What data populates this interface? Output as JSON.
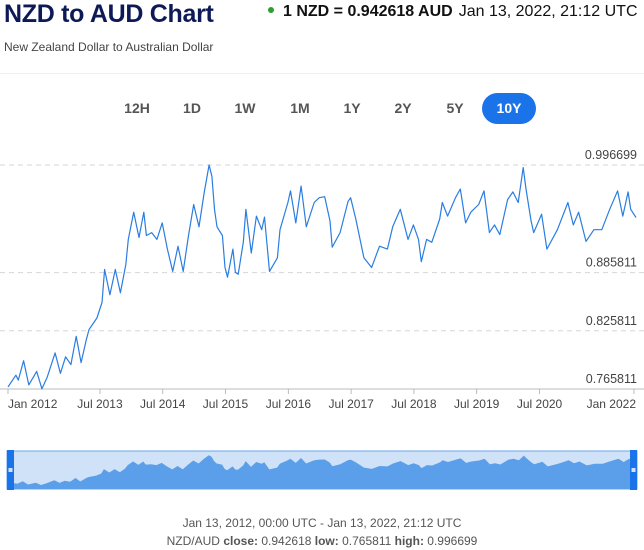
{
  "header": {
    "title": "NZD to AUD Chart",
    "subtitle": "New Zealand Dollar to Australian Dollar",
    "rate_text": "1 NZD = 0.942618 AUD",
    "timestamp": "Jan 13, 2022, 21:12 UTC",
    "status_color": "#2ca02c"
  },
  "ranges": [
    {
      "label": "12H",
      "active": false
    },
    {
      "label": "1D",
      "active": false
    },
    {
      "label": "1W",
      "active": false
    },
    {
      "label": "1M",
      "active": false
    },
    {
      "label": "1Y",
      "active": false
    },
    {
      "label": "2Y",
      "active": false
    },
    {
      "label": "5Y",
      "active": false
    },
    {
      "label": "10Y",
      "active": true
    }
  ],
  "footer": {
    "range_text": "Jan 13, 2012, 00:00 UTC - Jan 13, 2022, 21:12 UTC",
    "pair": "NZD/AUD",
    "close_label": "close:",
    "close_value": "0.942618",
    "low_label": "low:",
    "low_value": "0.765811",
    "high_label": "high:",
    "high_value": "0.996699"
  },
  "colors": {
    "line": "#2a7de1",
    "accent": "#1a73e8",
    "navigator_fill": "#5b9ee9",
    "navigator_bg": "#cfe2f8"
  },
  "chart_data": {
    "type": "line",
    "x_range": [
      "2012-01-13",
      "2022-01-13"
    ],
    "ylim": [
      0.765811,
      0.996699
    ],
    "grid": true,
    "y_ticks": [
      "0.996699",
      "0.885811",
      "0.825811",
      "0.765811"
    ],
    "x_ticks": [
      {
        "label": "Jan 2012",
        "date": "2012-01-13"
      },
      {
        "label": "Jul 2013",
        "date": "2013-07-01"
      },
      {
        "label": "Jul 2014",
        "date": "2014-07-01"
      },
      {
        "label": "Jul 2015",
        "date": "2015-07-01"
      },
      {
        "label": "Jul 2016",
        "date": "2016-07-01"
      },
      {
        "label": "Jul 2017",
        "date": "2017-07-01"
      },
      {
        "label": "Jul 2018",
        "date": "2018-07-01"
      },
      {
        "label": "Jul 2019",
        "date": "2019-07-01"
      },
      {
        "label": "Jul 2020",
        "date": "2020-07-01"
      },
      {
        "label": "Jan 2022",
        "date": "2022-01-01"
      }
    ],
    "series": [
      {
        "points": [
          [
            "2012-01-13",
            0.768
          ],
          [
            "2012-02-28",
            0.78
          ],
          [
            "2012-03-13",
            0.775
          ],
          [
            "2012-04-13",
            0.795
          ],
          [
            "2012-05-13",
            0.77
          ],
          [
            "2012-06-28",
            0.784
          ],
          [
            "2012-07-28",
            0.766
          ],
          [
            "2012-08-28",
            0.778
          ],
          [
            "2012-10-13",
            0.803
          ],
          [
            "2012-11-13",
            0.782
          ],
          [
            "2012-12-13",
            0.799
          ],
          [
            "2013-01-13",
            0.791
          ],
          [
            "2013-02-13",
            0.82
          ],
          [
            "2013-03-13",
            0.793
          ],
          [
            "2013-04-13",
            0.817
          ],
          [
            "2013-04-28",
            0.827
          ],
          [
            "2013-06-13",
            0.839
          ],
          [
            "2013-07-13",
            0.855
          ],
          [
            "2013-07-28",
            0.889
          ],
          [
            "2013-08-28",
            0.863
          ],
          [
            "2013-09-28",
            0.889
          ],
          [
            "2013-10-28",
            0.865
          ],
          [
            "2013-11-28",
            0.894
          ],
          [
            "2013-12-13",
            0.92
          ],
          [
            "2014-01-13",
            0.948
          ],
          [
            "2014-02-13",
            0.922
          ],
          [
            "2014-03-13",
            0.948
          ],
          [
            "2014-03-28",
            0.924
          ],
          [
            "2014-04-28",
            0.927
          ],
          [
            "2014-05-28",
            0.92
          ],
          [
            "2014-06-28",
            0.937
          ],
          [
            "2014-07-28",
            0.91
          ],
          [
            "2014-08-28",
            0.887
          ],
          [
            "2014-09-28",
            0.913
          ],
          [
            "2014-10-28",
            0.887
          ],
          [
            "2014-11-28",
            0.924
          ],
          [
            "2014-12-28",
            0.956
          ],
          [
            "2015-01-28",
            0.933
          ],
          [
            "2015-02-28",
            0.969
          ],
          [
            "2015-03-28",
            0.9967
          ],
          [
            "2015-04-13",
            0.985
          ],
          [
            "2015-04-28",
            0.951
          ],
          [
            "2015-05-13",
            0.933
          ],
          [
            "2015-06-13",
            0.924
          ],
          [
            "2015-06-28",
            0.891
          ],
          [
            "2015-07-13",
            0.881
          ],
          [
            "2015-08-13",
            0.91
          ],
          [
            "2015-08-28",
            0.886
          ],
          [
            "2015-09-13",
            0.884
          ],
          [
            "2015-10-13",
            0.917
          ],
          [
            "2015-10-28",
            0.951
          ],
          [
            "2015-11-28",
            0.906
          ],
          [
            "2015-12-28",
            0.944
          ],
          [
            "2016-01-28",
            0.93
          ],
          [
            "2016-02-13",
            0.943
          ],
          [
            "2016-03-13",
            0.887
          ],
          [
            "2016-04-28",
            0.901
          ],
          [
            "2016-05-13",
            0.93
          ],
          [
            "2016-06-28",
            0.958
          ],
          [
            "2016-07-13",
            0.97
          ],
          [
            "2016-08-13",
            0.937
          ],
          [
            "2016-09-13",
            0.975
          ],
          [
            "2016-10-13",
            0.933
          ],
          [
            "2016-11-28",
            0.958
          ],
          [
            "2016-12-28",
            0.963
          ],
          [
            "2017-01-28",
            0.964
          ],
          [
            "2017-02-28",
            0.939
          ],
          [
            "2017-03-13",
            0.912
          ],
          [
            "2017-04-28",
            0.927
          ],
          [
            "2017-06-13",
            0.959
          ],
          [
            "2017-06-28",
            0.963
          ],
          [
            "2017-07-28",
            0.941
          ],
          [
            "2017-09-13",
            0.901
          ],
          [
            "2017-10-28",
            0.891
          ],
          [
            "2017-12-13",
            0.913
          ],
          [
            "2018-01-28",
            0.91
          ],
          [
            "2018-02-28",
            0.933
          ],
          [
            "2018-04-13",
            0.951
          ],
          [
            "2018-05-28",
            0.92
          ],
          [
            "2018-06-28",
            0.935
          ],
          [
            "2018-07-28",
            0.92
          ],
          [
            "2018-08-13",
            0.897
          ],
          [
            "2018-09-13",
            0.92
          ],
          [
            "2018-10-13",
            0.917
          ],
          [
            "2018-11-28",
            0.941
          ],
          [
            "2018-12-13",
            0.958
          ],
          [
            "2019-01-13",
            0.944
          ],
          [
            "2019-02-28",
            0.963
          ],
          [
            "2019-03-28",
            0.972
          ],
          [
            "2019-04-28",
            0.937
          ],
          [
            "2019-05-28",
            0.948
          ],
          [
            "2019-07-13",
            0.956
          ],
          [
            "2019-08-13",
            0.97
          ],
          [
            "2019-09-13",
            0.927
          ],
          [
            "2019-10-13",
            0.935
          ],
          [
            "2019-11-13",
            0.925
          ],
          [
            "2019-12-28",
            0.961
          ],
          [
            "2020-01-28",
            0.969
          ],
          [
            "2020-02-28",
            0.958
          ],
          [
            "2020-03-28",
            0.994
          ],
          [
            "2020-04-13",
            0.972
          ],
          [
            "2020-05-13",
            0.939
          ],
          [
            "2020-05-28",
            0.927
          ],
          [
            "2020-07-13",
            0.946
          ],
          [
            "2020-08-13",
            0.91
          ],
          [
            "2020-10-13",
            0.93
          ],
          [
            "2020-12-13",
            0.958
          ],
          [
            "2021-01-13",
            0.935
          ],
          [
            "2021-02-13",
            0.948
          ],
          [
            "2021-03-28",
            0.918
          ],
          [
            "2021-05-13",
            0.93
          ],
          [
            "2021-06-28",
            0.93
          ],
          [
            "2021-08-13",
            0.951
          ],
          [
            "2021-09-28",
            0.97
          ],
          [
            "2021-10-28",
            0.944
          ],
          [
            "2021-11-28",
            0.969
          ],
          [
            "2021-12-13",
            0.951
          ],
          [
            "2022-01-13",
            0.942618
          ]
        ]
      }
    ]
  }
}
